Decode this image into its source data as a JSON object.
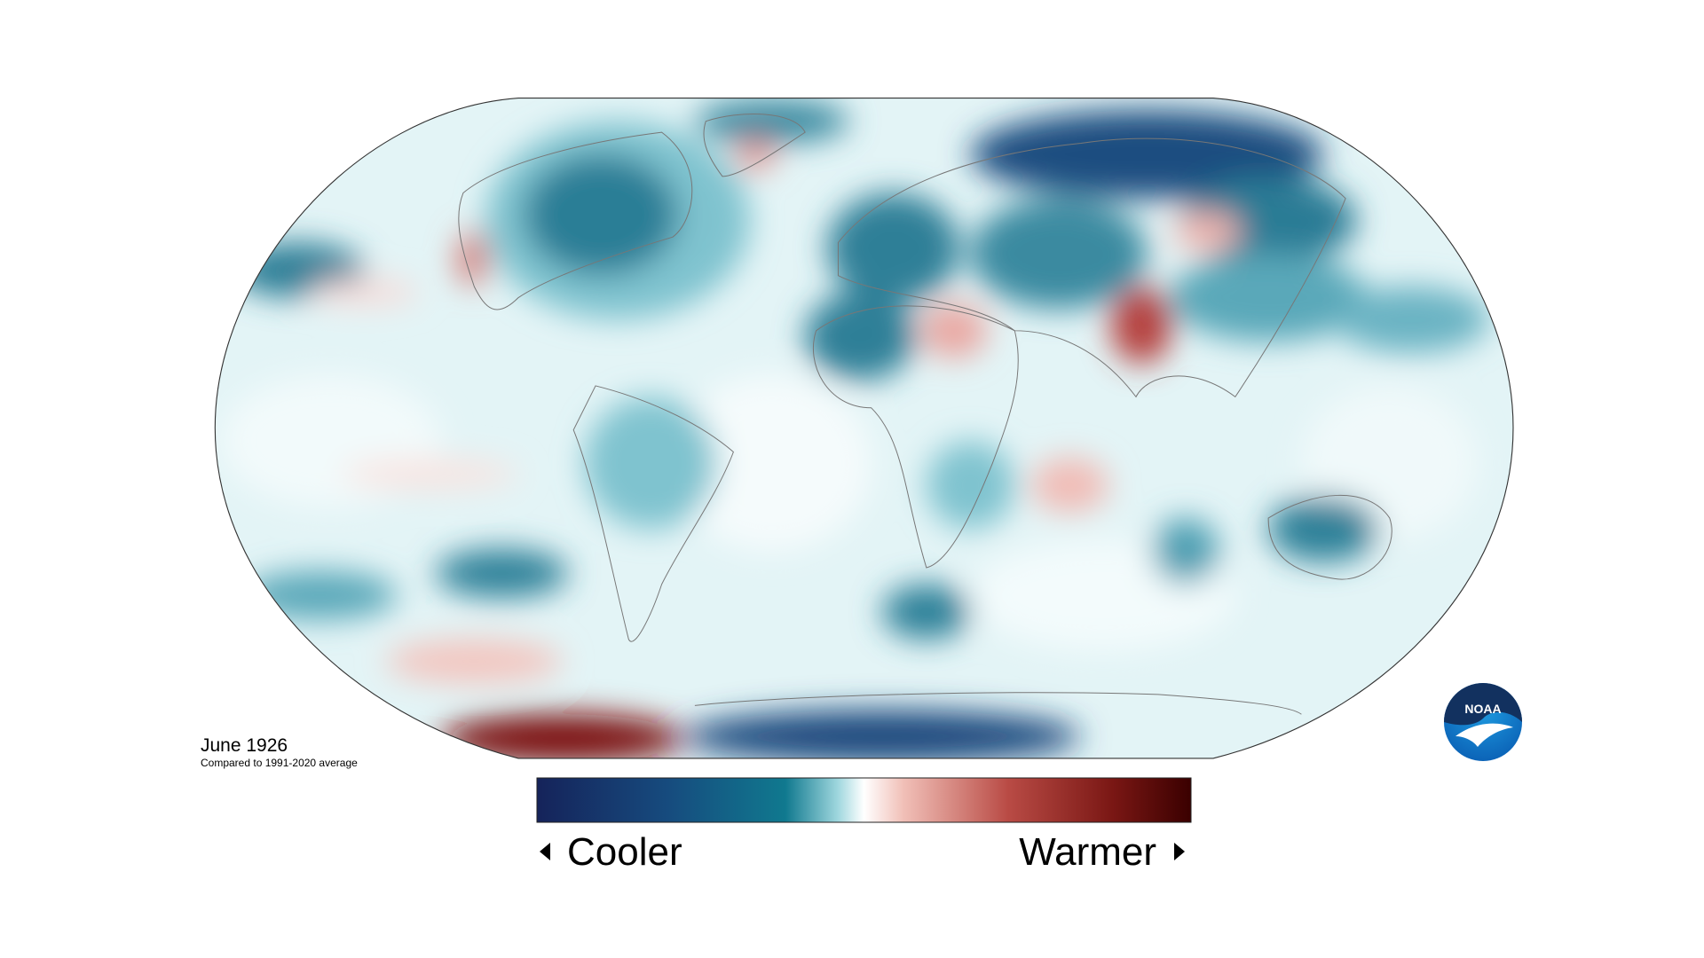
{
  "map": {
    "title": "June 1926",
    "subtitle": "Compared to 1991-2020 average"
  },
  "legend": {
    "low": "Cooler",
    "high": "Warmer"
  },
  "logo": {
    "text": "NOAA"
  }
}
